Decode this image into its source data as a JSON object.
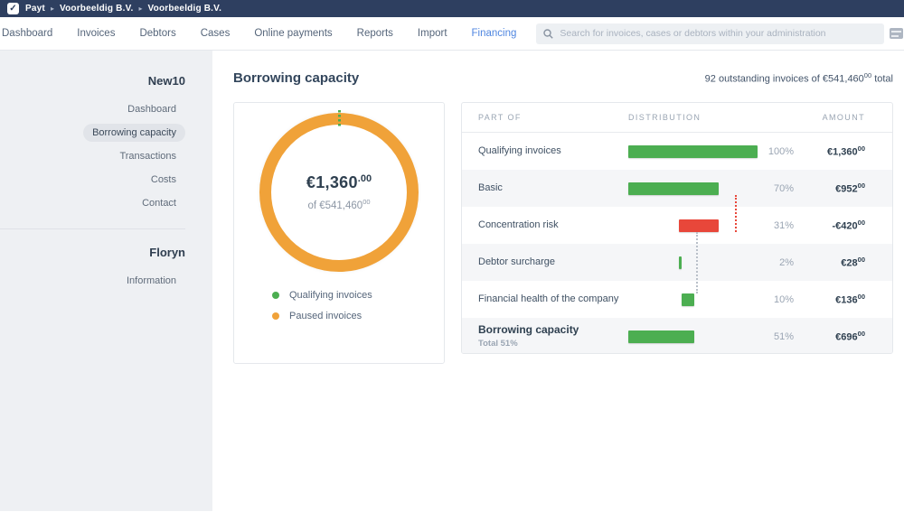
{
  "topbar": {
    "check_icon": "✓",
    "breadcrumb": [
      "Payt",
      "Voorbeeldig B.V.",
      "Voorbeeldig B.V."
    ],
    "separator": "▸"
  },
  "nav": {
    "items": [
      "Dashboard",
      "Invoices",
      "Debtors",
      "Cases",
      "Online payments",
      "Reports",
      "Import",
      "Financing"
    ],
    "active": "Financing",
    "search_placeholder": "Search for invoices, cases or debtors within your administration",
    "keyboard_icon": "keyboard-icon"
  },
  "sidebar": {
    "sections": [
      {
        "header": "New10",
        "items": [
          "Dashboard",
          "Borrowing capacity",
          "Transactions",
          "Costs",
          "Contact"
        ],
        "active": "Borrowing capacity"
      },
      {
        "header": "Floryn",
        "items": [
          "Information"
        ],
        "active": null
      }
    ]
  },
  "main": {
    "title": "Borrowing capacity",
    "summary_prefix": "92 outstanding invoices of €541,460",
    "summary_cents": "00",
    "summary_suffix": " total"
  },
  "donut": {
    "center_amount": "€1,360",
    "center_cents": ".00",
    "center_total": "of €541,460",
    "center_total_cents": "00",
    "legend": [
      {
        "label": "Qualifying invoices",
        "color": "#4cae51"
      },
      {
        "label": "Paused invoices",
        "color": "#f0a239"
      }
    ]
  },
  "table": {
    "columns": [
      "PART OF",
      "DISTRIBUTION",
      "AMOUNT"
    ],
    "rows": [
      {
        "label": "Qualifying invoices",
        "sub": null,
        "pct": "100%",
        "amount": "€1,360",
        "cents": "00",
        "bold": false
      },
      {
        "label": "Basic",
        "sub": null,
        "pct": "70%",
        "amount": "€952",
        "cents": "00",
        "bold": false
      },
      {
        "label": "Concentration risk",
        "sub": null,
        "pct": "31%",
        "amount": "-€420",
        "cents": "00",
        "bold": false
      },
      {
        "label": "Debtor surcharge",
        "sub": null,
        "pct": "2%",
        "amount": "€28",
        "cents": "00",
        "bold": false
      },
      {
        "label": "Financial health of the company",
        "sub": null,
        "pct": "10%",
        "amount": "€136",
        "cents": "00",
        "bold": false
      },
      {
        "label": "Borrowing capacity",
        "sub": "Total 51%",
        "pct": "51%",
        "amount": "€696",
        "cents": "00",
        "bold": true
      }
    ]
  },
  "colors": {
    "green": "#4cae51",
    "orange": "#f0a239",
    "red": "#e8473a",
    "gray_dotted": "#b9c0c9",
    "accent_blue": "#4f86e0",
    "topbar_navy": "#2e3f60"
  },
  "chart_data": [
    {
      "type": "pie",
      "title": "Borrowing capacity donut",
      "labels": [
        "Qualifying invoices",
        "Paused invoices"
      ],
      "values_pct": [
        0.3,
        99.7
      ],
      "colors": [
        "#4cae51",
        "#f0a239"
      ],
      "center_text": "€1,360.00 of €541,460.00",
      "legend_position": "bottom-left"
    },
    {
      "type": "bar",
      "orientation": "horizontal-waterfall",
      "categories": [
        "Qualifying invoices",
        "Basic",
        "Concentration risk",
        "Debtor surcharge",
        "Financial health of the company",
        "Borrowing capacity"
      ],
      "percent_values": [
        100,
        70,
        31,
        2,
        10,
        51
      ],
      "amounts_eur": [
        1360,
        952,
        -420,
        28,
        136,
        696
      ],
      "bar_start_pct": [
        0,
        0,
        39,
        39,
        41,
        0
      ],
      "bar_width_pct": [
        100,
        70,
        31,
        2,
        10,
        51
      ],
      "bar_colors": [
        "#4cae51",
        "#4cae51",
        "#e8473a",
        "#4cae51",
        "#4cae51",
        "#4cae51"
      ],
      "xlim": [
        0,
        100
      ],
      "connectors": [
        {
          "x_pct": 70,
          "from_row": 1,
          "to_row": 2,
          "color": "#e8473a",
          "mode": "bottom-bottom"
        },
        {
          "x_pct": 40,
          "from_row": 2,
          "to_row": 4,
          "color": "#b9c0c9",
          "mode": "bottom-top"
        }
      ]
    }
  ]
}
